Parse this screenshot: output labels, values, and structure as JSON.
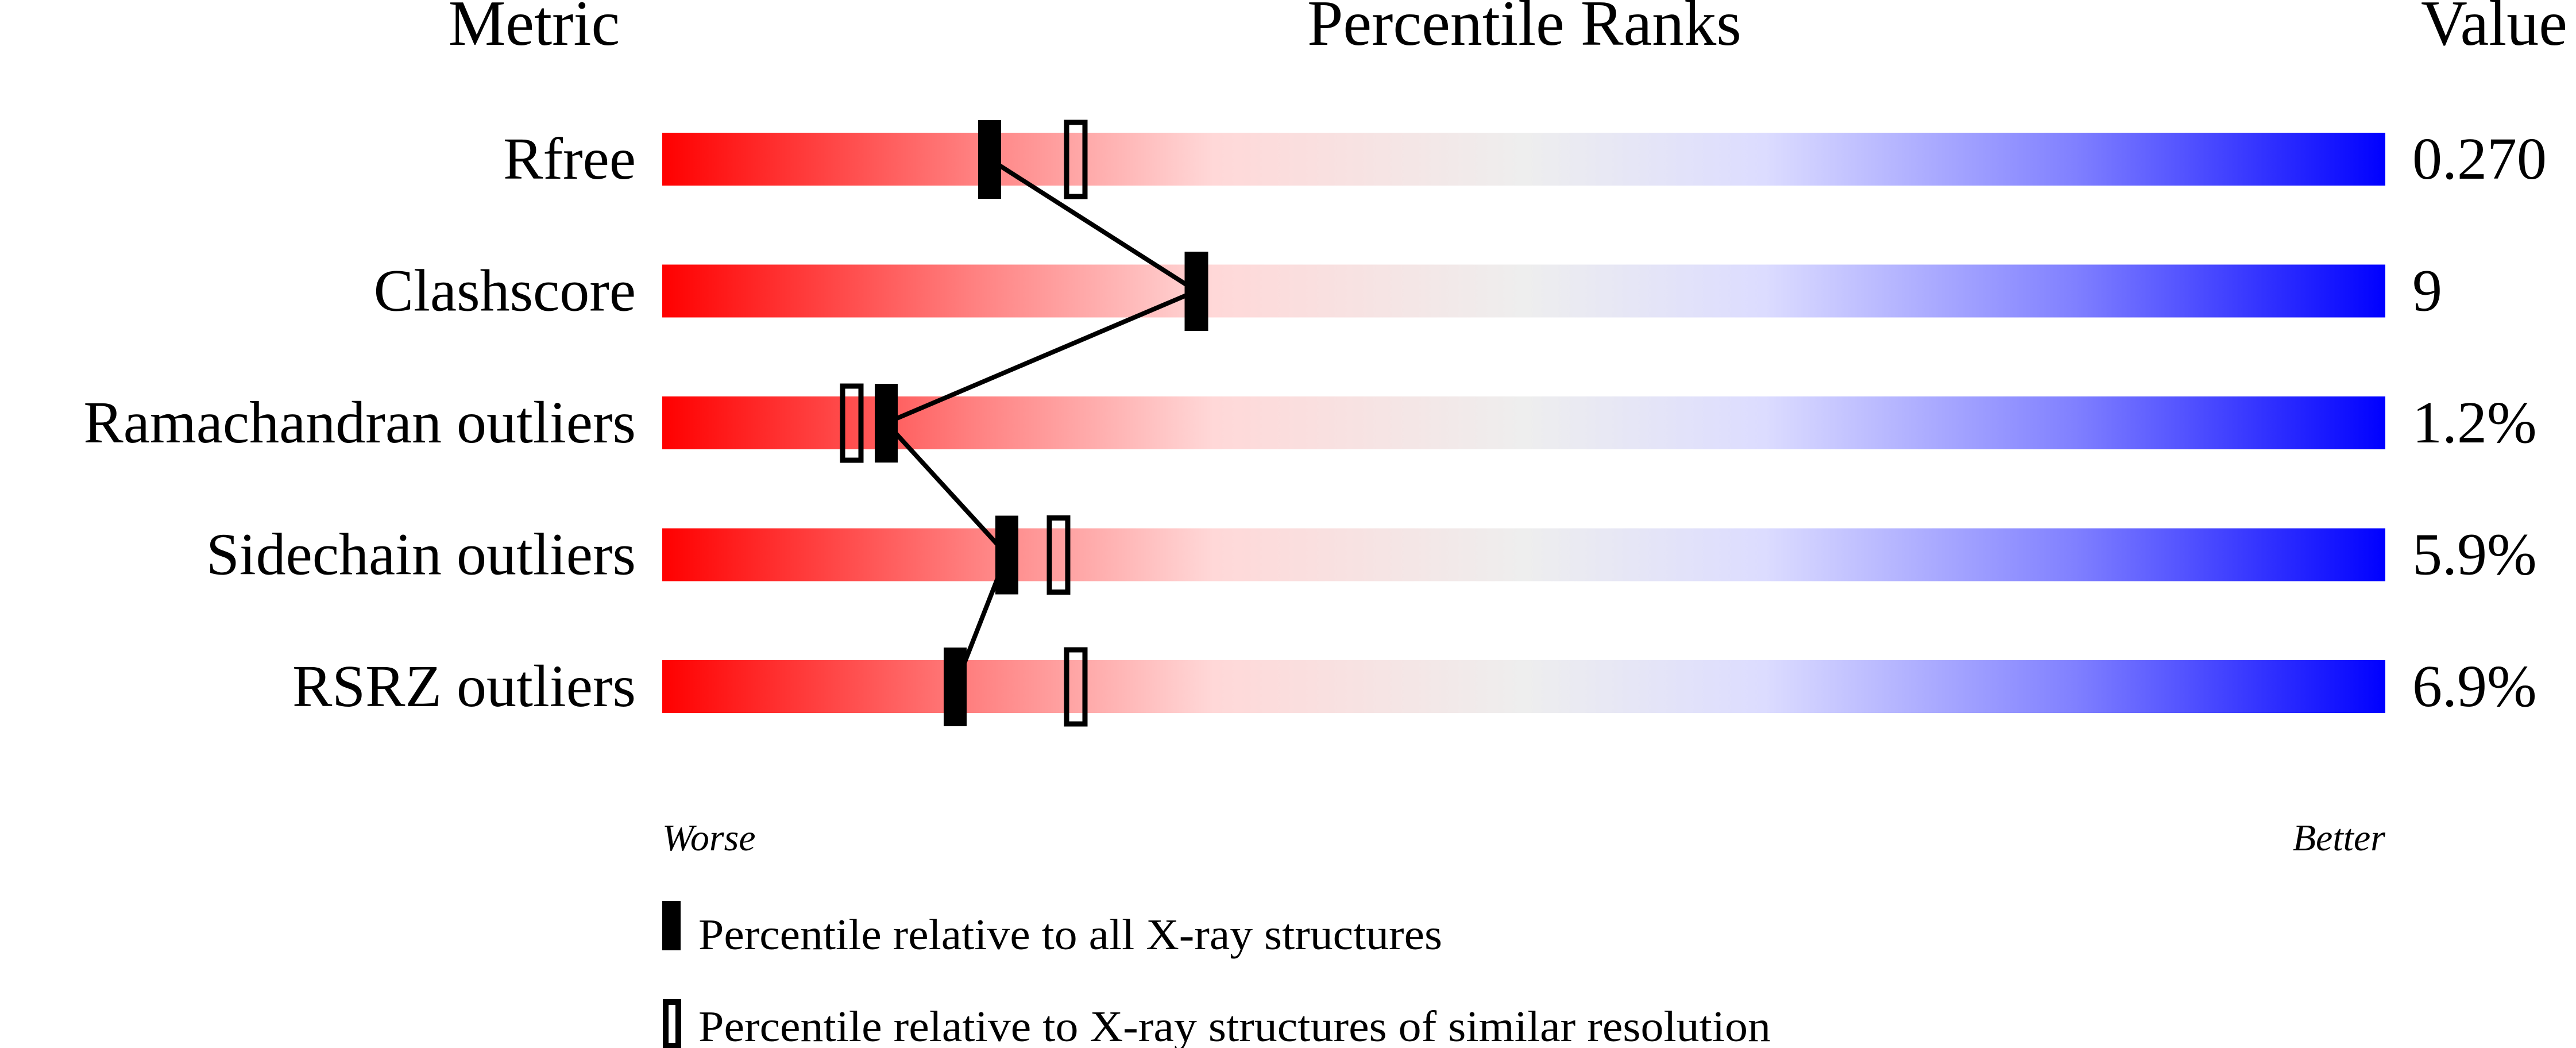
{
  "chart_data": {
    "type": "percentile-slider",
    "headers": {
      "metric": "Metric",
      "ranks": "Percentile Ranks",
      "value": "Value"
    },
    "xlim": [
      0,
      100
    ],
    "axis_labels": {
      "left": "Worse",
      "right": "Better"
    },
    "gradient_colors": [
      "#ff0000",
      "#ff8080",
      "#ffd8d8",
      "#eeeeee",
      "#dcdcff",
      "#8080ff",
      "#0000ff"
    ],
    "metrics": [
      {
        "name": "Rfree",
        "value": "0.270",
        "percentile_all": 19,
        "percentile_similar": 24
      },
      {
        "name": "Clashscore",
        "value": "9",
        "percentile_all": 31,
        "percentile_similar": 31
      },
      {
        "name": "Ramachandran outliers",
        "value": "1.2%",
        "percentile_all": 13,
        "percentile_similar": 11
      },
      {
        "name": "Sidechain outliers",
        "value": "5.9%",
        "percentile_all": 20,
        "percentile_similar": 23
      },
      {
        "name": "RSRZ outliers",
        "value": "6.9%",
        "percentile_all": 17,
        "percentile_similar": 24
      }
    ],
    "legend": [
      {
        "marker": "filled",
        "label": "Percentile relative to all X-ray structures"
      },
      {
        "marker": "open",
        "label": "Percentile relative to X-ray structures of similar resolution"
      }
    ]
  }
}
